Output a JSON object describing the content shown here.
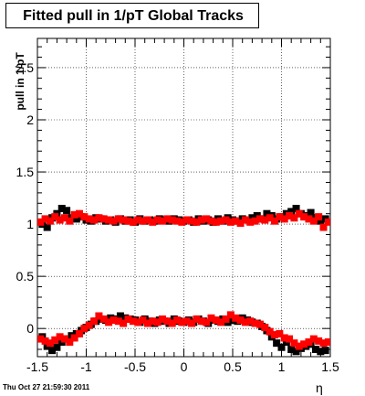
{
  "title": "Fitted pull in 1/pT  Global Tracks",
  "timestamp": "Thu Oct 27 21:59:30 2011",
  "chart_data": {
    "type": "scatter",
    "title": "Fitted pull in 1/pT  Global Tracks",
    "xlabel": "η",
    "ylabel": "pull in 1/pT",
    "xlim": [
      -1.5,
      1.5
    ],
    "ylim": [
      -0.27,
      2.78
    ],
    "grid": true,
    "x_ticks": [
      -1.5,
      -1,
      -0.5,
      0,
      0.5,
      1,
      1.5
    ],
    "x_tick_labels": [
      "-1.5",
      "-1",
      "-0.5",
      "0",
      "0.5",
      "1",
      "1.5"
    ],
    "y_ticks": [
      0,
      0.5,
      1,
      1.5,
      2,
      2.5
    ],
    "y_tick_labels": [
      "0",
      "0.5",
      "1",
      "1.5",
      "2",
      "2.5"
    ],
    "colors": {
      "black_series": "#000000",
      "red_series": "#ff0000"
    },
    "series": [
      {
        "color": "black",
        "x": [
          -1.45,
          -1.4,
          -1.35,
          -1.3,
          -1.25,
          -1.2,
          -1.15,
          -1.1,
          -1.05,
          -1.0,
          -0.95,
          -0.9,
          -0.85,
          -0.8,
          -0.75,
          -0.7,
          -0.65,
          -0.6,
          -0.55,
          -0.5,
          -0.45,
          -0.4,
          -0.35,
          -0.3,
          -0.25,
          -0.2,
          -0.15,
          -0.1,
          -0.05,
          0.0,
          0.05,
          0.1,
          0.15,
          0.2,
          0.25,
          0.3,
          0.35,
          0.4,
          0.45,
          0.5,
          0.55,
          0.6,
          0.65,
          0.7,
          0.75,
          0.8,
          0.85,
          0.9,
          0.95,
          1.0,
          1.05,
          1.1,
          1.15,
          1.2,
          1.25,
          1.3,
          1.35,
          1.4,
          1.45
        ],
        "y": [
          1.0,
          0.97,
          1.06,
          1.1,
          1.15,
          1.13,
          1.06,
          1.05,
          1.07,
          1.04,
          1.03,
          1.06,
          1.05,
          1.03,
          1.04,
          1.02,
          1.05,
          1.03,
          1.04,
          1.02,
          1.05,
          1.03,
          1.04,
          1.03,
          1.05,
          1.04,
          1.03,
          1.05,
          1.04,
          1.03,
          1.04,
          1.02,
          1.05,
          1.03,
          1.04,
          1.02,
          1.05,
          1.03,
          1.06,
          1.04,
          1.03,
          1.05,
          1.04,
          1.06,
          1.08,
          1.05,
          1.1,
          1.08,
          1.05,
          1.07,
          1.1,
          1.12,
          1.15,
          1.1,
          1.08,
          1.11,
          1.06,
          1.03,
          1.05
        ]
      },
      {
        "color": "red",
        "x": [
          -1.47,
          -1.42,
          -1.37,
          -1.32,
          -1.27,
          -1.22,
          -1.17,
          -1.12,
          -1.07,
          -1.02,
          -0.97,
          -0.92,
          -0.87,
          -0.82,
          -0.77,
          -0.72,
          -0.67,
          -0.62,
          -0.57,
          -0.52,
          -0.47,
          -0.42,
          -0.37,
          -0.32,
          -0.27,
          -0.22,
          -0.17,
          -0.12,
          -0.07,
          -0.02,
          0.03,
          0.08,
          0.13,
          0.18,
          0.23,
          0.28,
          0.33,
          0.38,
          0.43,
          0.48,
          0.53,
          0.58,
          0.63,
          0.68,
          0.73,
          0.78,
          0.83,
          0.88,
          0.93,
          0.98,
          1.03,
          1.08,
          1.13,
          1.18,
          1.23,
          1.28,
          1.33,
          1.38,
          1.43,
          1.48
        ],
        "y": [
          1.02,
          1.05,
          1.03,
          1.07,
          1.04,
          1.06,
          1.03,
          1.09,
          1.1,
          1.07,
          1.05,
          1.04,
          1.06,
          1.05,
          1.04,
          1.03,
          1.05,
          1.04,
          1.03,
          1.02,
          1.04,
          1.03,
          1.04,
          1.02,
          1.04,
          1.03,
          1.05,
          1.04,
          1.03,
          1.02,
          1.04,
          1.03,
          1.02,
          1.04,
          1.05,
          1.03,
          1.02,
          1.03,
          1.04,
          1.02,
          1.03,
          1.01,
          1.04,
          1.02,
          1.03,
          1.05,
          1.04,
          1.06,
          1.03,
          1.07,
          1.05,
          1.08,
          1.06,
          1.1,
          1.07,
          1.05,
          1.03,
          1.07,
          0.97,
          1.02
        ]
      },
      {
        "color": "black",
        "x": [
          -1.45,
          -1.4,
          -1.35,
          -1.3,
          -1.25,
          -1.2,
          -1.15,
          -1.1,
          -1.05,
          -1.0,
          -0.95,
          -0.9,
          -0.85,
          -0.8,
          -0.75,
          -0.7,
          -0.65,
          -0.6,
          -0.55,
          -0.5,
          -0.45,
          -0.4,
          -0.35,
          -0.3,
          -0.25,
          -0.2,
          -0.15,
          -0.1,
          -0.05,
          0.0,
          0.05,
          0.1,
          0.15,
          0.2,
          0.25,
          0.3,
          0.35,
          0.4,
          0.45,
          0.5,
          0.55,
          0.6,
          0.65,
          0.7,
          0.75,
          0.8,
          0.85,
          0.9,
          0.95,
          1.0,
          1.05,
          1.1,
          1.15,
          1.2,
          1.25,
          1.3,
          1.35,
          1.4,
          1.45
        ],
        "y": [
          -0.08,
          -0.17,
          -0.21,
          -0.18,
          -0.13,
          -0.1,
          -0.07,
          -0.05,
          -0.02,
          0.01,
          0.04,
          0.07,
          0.09,
          0.08,
          0.1,
          0.09,
          0.12,
          0.1,
          0.09,
          0.08,
          0.06,
          0.09,
          0.07,
          0.05,
          0.08,
          0.07,
          0.05,
          0.09,
          0.07,
          0.06,
          0.08,
          0.06,
          0.09,
          0.07,
          0.05,
          0.08,
          0.07,
          0.09,
          0.06,
          0.08,
          0.07,
          0.1,
          0.08,
          0.06,
          0.05,
          0.02,
          -0.02,
          -0.08,
          -0.14,
          -0.18,
          -0.13,
          -0.2,
          -0.22,
          -0.19,
          -0.17,
          -0.15,
          -0.2,
          -0.22,
          -0.21
        ]
      },
      {
        "color": "red",
        "x": [
          -1.47,
          -1.42,
          -1.37,
          -1.32,
          -1.27,
          -1.22,
          -1.17,
          -1.12,
          -1.07,
          -1.02,
          -0.97,
          -0.92,
          -0.87,
          -0.82,
          -0.77,
          -0.72,
          -0.67,
          -0.62,
          -0.57,
          -0.52,
          -0.47,
          -0.42,
          -0.37,
          -0.32,
          -0.27,
          -0.22,
          -0.17,
          -0.12,
          -0.07,
          -0.02,
          0.03,
          0.08,
          0.13,
          0.18,
          0.23,
          0.28,
          0.33,
          0.38,
          0.43,
          0.48,
          0.53,
          0.58,
          0.63,
          0.68,
          0.73,
          0.78,
          0.83,
          0.88,
          0.93,
          0.98,
          1.03,
          1.08,
          1.13,
          1.18,
          1.23,
          1.28,
          1.33,
          1.38,
          1.43,
          1.48
        ],
        "y": [
          -0.1,
          -0.12,
          -0.14,
          -0.11,
          -0.08,
          -0.1,
          -0.13,
          -0.09,
          -0.05,
          0.0,
          0.03,
          0.07,
          0.12,
          0.09,
          0.06,
          0.08,
          0.07,
          0.05,
          0.09,
          0.07,
          0.06,
          0.08,
          0.05,
          0.07,
          0.06,
          0.09,
          0.07,
          0.05,
          0.08,
          0.06,
          0.07,
          0.05,
          0.09,
          0.07,
          0.06,
          0.1,
          0.08,
          0.06,
          0.09,
          0.13,
          0.1,
          0.08,
          0.06,
          0.07,
          0.05,
          0.04,
          0.01,
          -0.03,
          -0.06,
          -0.05,
          -0.09,
          -0.1,
          -0.14,
          -0.17,
          -0.15,
          -0.13,
          -0.1,
          -0.12,
          -0.14,
          -0.13
        ]
      }
    ]
  }
}
